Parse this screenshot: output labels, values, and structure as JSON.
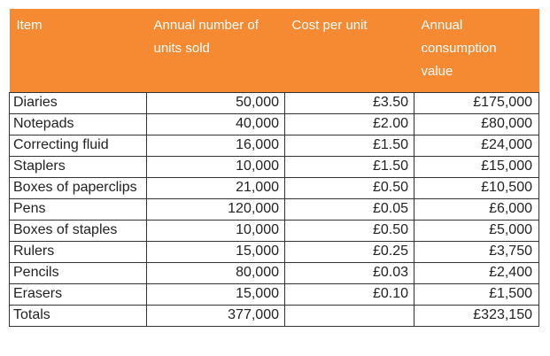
{
  "header": {
    "item": "Item",
    "units_sold": "Annual number of units sold",
    "cost_per_unit": "Cost per unit",
    "consumption_value": "Annual consumption value"
  },
  "rows": [
    {
      "item": "Diaries",
      "units": "50,000",
      "cost": "£3.50",
      "value": "£175,000"
    },
    {
      "item": "Notepads",
      "units": "40,000",
      "cost": "£2.00",
      "value": "£80,000"
    },
    {
      "item": "Correcting fluid",
      "units": "16,000",
      "cost": "£1.50",
      "value": "£24,000"
    },
    {
      "item": "Staplers",
      "units": "10,000",
      "cost": "£1.50",
      "value": "£15,000"
    },
    {
      "item": "Boxes of paperclips",
      "units": "21,000",
      "cost": "£0.50",
      "value": "£10,500"
    },
    {
      "item": "Pens",
      "units": "120,000",
      "cost": "£0.05",
      "value": "£6,000"
    },
    {
      "item": "Boxes of staples",
      "units": "10,000",
      "cost": "£0.50",
      "value": "£5,000"
    },
    {
      "item": "Rulers",
      "units": "15,000",
      "cost": "£0.25",
      "value": "£3,750"
    },
    {
      "item": "Pencils",
      "units": "80,000",
      "cost": "£0.03",
      "value": "£2,400"
    },
    {
      "item": "Erasers",
      "units": "15,000",
      "cost": "£0.10",
      "value": "£1,500"
    }
  ],
  "totals": {
    "label": "Totals",
    "units": "377,000",
    "cost": "",
    "value": "£323,150"
  },
  "colors": {
    "header_bg": "#f58a33",
    "header_text": "#ffffff",
    "border": "#333333"
  }
}
